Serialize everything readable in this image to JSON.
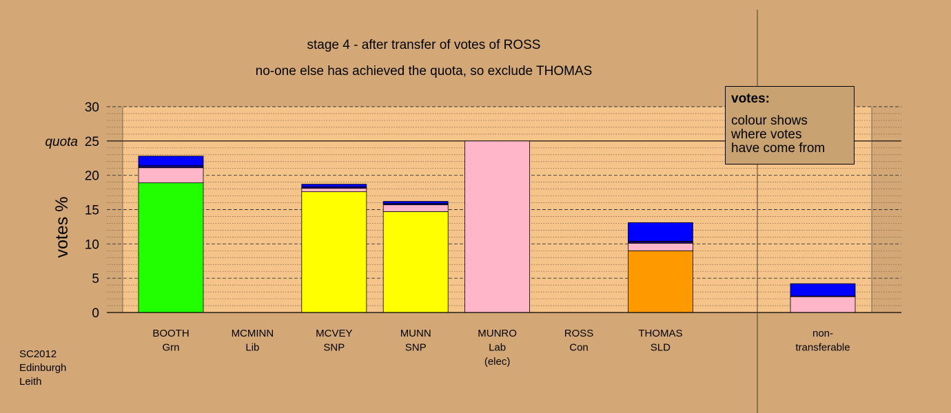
{
  "title_lines": [
    "stage 4 - after transfer of votes of ROSS",
    "no-one else has achieved the quota, so exclude THOMAS"
  ],
  "legend": {
    "heading": "votes:",
    "lines": [
      "colour shows",
      "where votes",
      "have come from"
    ]
  },
  "credit": [
    "SC2012",
    "Edinburgh",
    "Leith"
  ],
  "colors": {
    "background": "#d4a876",
    "plot_area": "#f5c48a",
    "Grn": "#22ff00",
    "SNP": "#ffff00",
    "Lab": "#ffb6c8",
    "SLD": "#ff9900",
    "Con": "#0000ff",
    "Lib": "#1a0a6e"
  },
  "chart_data": {
    "type": "bar",
    "stacked": true,
    "ylabel": "votes %",
    "ylim": [
      0,
      30
    ],
    "yticks": [
      0,
      5,
      10,
      15,
      20,
      25,
      30
    ],
    "quota": {
      "label": "quota",
      "value": 25
    },
    "grid": true,
    "legend_position": "top-right",
    "categories": [
      {
        "lines": [
          "BOOTH",
          "Grn"
        ]
      },
      {
        "lines": [
          "MCMINN",
          "Lib"
        ]
      },
      {
        "lines": [
          "MCVEY",
          "SNP"
        ]
      },
      {
        "lines": [
          "MUNN",
          "SNP"
        ]
      },
      {
        "lines": [
          "MUNRO",
          "Lab",
          "(elec)"
        ]
      },
      {
        "lines": [
          "ROSS",
          "Con"
        ]
      },
      {
        "lines": [
          "THOMAS",
          "SLD"
        ]
      },
      {
        "lines": [
          "non-",
          "transferable"
        ]
      }
    ],
    "stacks": [
      [
        {
          "value": 18.9,
          "source": "Grn"
        },
        {
          "value": 2.2,
          "source": "Lab"
        },
        {
          "value": 0.3,
          "source": "Lib"
        },
        {
          "value": 1.4,
          "source": "Con"
        }
      ],
      [],
      [
        {
          "value": 17.6,
          "source": "SNP"
        },
        {
          "value": 0.5,
          "source": "Lab"
        },
        {
          "value": 0.2,
          "source": "Lib"
        },
        {
          "value": 0.4,
          "source": "Con"
        }
      ],
      [
        {
          "value": 14.7,
          "source": "SNP"
        },
        {
          "value": 1.0,
          "source": "Lab"
        },
        {
          "value": 0.2,
          "source": "Lib"
        },
        {
          "value": 0.3,
          "source": "Con"
        }
      ],
      [
        {
          "value": 25.0,
          "source": "Lab"
        }
      ],
      [],
      [
        {
          "value": 9.0,
          "source": "SLD"
        },
        {
          "value": 1.1,
          "source": "Lab"
        },
        {
          "value": 0.3,
          "source": "Lib"
        },
        {
          "value": 2.7,
          "source": "Con"
        }
      ],
      [
        {
          "value": 2.3,
          "source": "Lab"
        },
        {
          "value": 0.1,
          "source": "Lib"
        },
        {
          "value": 1.8,
          "source": "Con"
        }
      ]
    ]
  }
}
